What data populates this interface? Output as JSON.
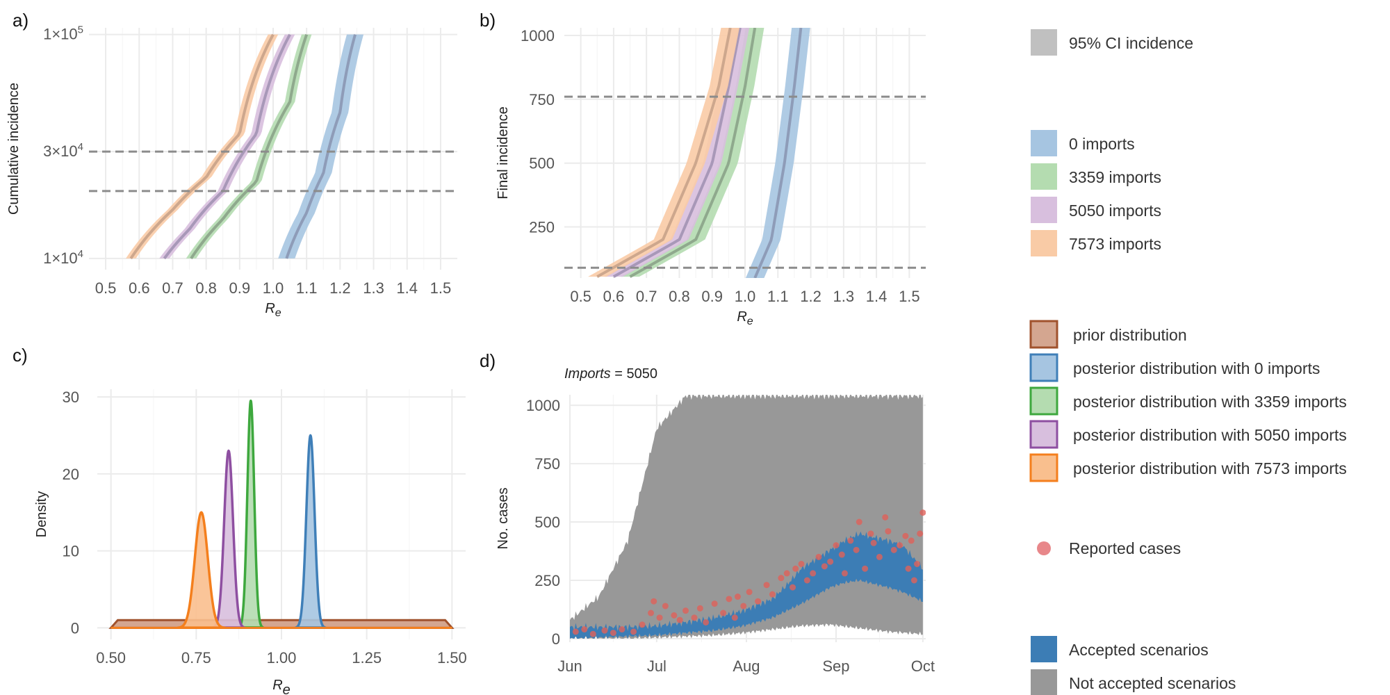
{
  "figure": {
    "panel_labels": [
      "a)",
      "b)",
      "c)",
      "d)"
    ]
  },
  "chart_data": [
    {
      "type": "line",
      "panel": "a)",
      "ylabel": "Cumulative incidence",
      "xlabel": "R",
      "xlabel_sub": "e",
      "xlim": [
        0.45,
        1.55
      ],
      "ylog10_range": [
        3.95,
        5.03
      ],
      "x_ticks": [
        "0.5",
        "0.6",
        "0.7",
        "0.8",
        "0.9",
        "1.0",
        "1.1",
        "1.2",
        "1.3",
        "1.4",
        "1.5"
      ],
      "y_ticks": [
        {
          "value": 10000,
          "mant": "1",
          "exp": "4"
        },
        {
          "value": 30000,
          "mant": "3",
          "exp": "4"
        },
        {
          "value": 100000,
          "mant": "1",
          "exp": "5"
        }
      ],
      "hlines": [
        20000,
        30000
      ],
      "series": [
        {
          "name": "0 imports",
          "color": "#A6C5E1",
          "line": "#8E9CB8",
          "x": [
            1.04,
            1.1,
            1.15,
            1.2,
            1.245
          ],
          "y": [
            10000,
            16000,
            24000,
            45000,
            100000
          ],
          "halfwidth": 0.025
        },
        {
          "name": "3359 imports",
          "color": "#B4DCB0",
          "line": "#8FA98D",
          "x": [
            0.755,
            0.85,
            0.95,
            1.05,
            1.1
          ],
          "y": [
            10000,
            15000,
            22000,
            50000,
            100000
          ],
          "halfwidth": 0.015
        },
        {
          "name": "5050 imports",
          "color": "#D8BFDE",
          "line": "#A898B8",
          "x": [
            0.675,
            0.75,
            0.85,
            0.95,
            1.05
          ],
          "y": [
            10000,
            13500,
            20000,
            36000,
            100000
          ],
          "halfwidth": 0.015
        },
        {
          "name": "7573 imports",
          "color": "#F9CBA6",
          "line": "#CDA78D",
          "x": [
            0.575,
            0.7,
            0.8,
            0.9,
            1.0
          ],
          "y": [
            10000,
            16500,
            23000,
            36000,
            100000
          ],
          "halfwidth": 0.015
        }
      ]
    },
    {
      "type": "line",
      "panel": "b)",
      "ylabel": "Final incidence",
      "xlabel": "R",
      "xlabel_sub": "e",
      "xlim": [
        0.45,
        1.55
      ],
      "ylim": [
        50,
        1030
      ],
      "x_ticks": [
        "0.5",
        "0.6",
        "0.7",
        "0.8",
        "0.9",
        "1.0",
        "1.1",
        "1.2",
        "1.3",
        "1.4",
        "1.5"
      ],
      "y_ticks": [
        "250",
        "500",
        "750",
        "1000"
      ],
      "hlines": [
        90,
        760
      ],
      "series": [
        {
          "name": "0 imports",
          "color": "#A6C5E1",
          "line": "#8E9CB8",
          "x": [
            1.03,
            1.08,
            1.12,
            1.15,
            1.17
          ],
          "y": [
            50,
            200,
            500,
            800,
            1030
          ],
          "halfwidth": 0.028
        },
        {
          "name": "3359 imports",
          "color": "#B4DCB0",
          "line": "#8FA98D",
          "x": [
            0.65,
            0.85,
            0.95,
            1.0,
            1.03
          ],
          "y": [
            55,
            200,
            500,
            800,
            1030
          ],
          "halfwidth": 0.028
        },
        {
          "name": "5050 imports",
          "color": "#D8BFDE",
          "line": "#A898B8",
          "x": [
            0.6,
            0.8,
            0.9,
            0.95,
            0.985
          ],
          "y": [
            55,
            200,
            500,
            800,
            1030
          ],
          "halfwidth": 0.028
        },
        {
          "name": "7573 imports",
          "color": "#F9CBA6",
          "line": "#CDA78D",
          "x": [
            0.55,
            0.75,
            0.85,
            0.92,
            0.955
          ],
          "y": [
            55,
            200,
            500,
            800,
            1030
          ],
          "halfwidth": 0.028
        }
      ]
    },
    {
      "type": "area",
      "panel": "c)",
      "ylabel": "Density",
      "xlabel": "R",
      "xlabel_sub": "e",
      "xlim": [
        0.46,
        1.54
      ],
      "ylim": [
        -1.5,
        31
      ],
      "x_ticks": [
        "0.50",
        "0.75",
        "1.00",
        "1.25",
        "1.50"
      ],
      "y_ticks": [
        "0",
        "10",
        "20",
        "30"
      ],
      "prior": {
        "name": "prior distribution",
        "range": [
          0.5,
          1.5
        ],
        "density": 1.0,
        "fill": "#D4A690",
        "stroke": "#A0522D"
      },
      "posteriors": [
        {
          "name": "posterior distribution with 0 imports",
          "mean": 1.085,
          "sd": 0.012,
          "peak": 25,
          "fill": "#A6C5E1",
          "stroke": "#3F7FB8"
        },
        {
          "name": "posterior distribution with 3359 imports",
          "mean": 0.91,
          "sd": 0.01,
          "peak": 29.5,
          "fill": "#B4DCB0",
          "stroke": "#3EA83E"
        },
        {
          "name": "posterior distribution with 5050 imports",
          "mean": 0.845,
          "sd": 0.013,
          "peak": 23,
          "fill": "#D8BFDE",
          "stroke": "#8E4FA1"
        },
        {
          "name": "posterior distribution with 7573 imports",
          "mean": 0.765,
          "sd": 0.019,
          "peak": 15,
          "fill": "#F9BF8E",
          "stroke": "#F47F1D"
        }
      ]
    },
    {
      "type": "area",
      "panel": "d)",
      "subtitle_italic": "Imports",
      "subtitle_rest": " = 5050",
      "ylabel": "No. cases",
      "xlim": [
        0,
        123
      ],
      "ylim": [
        -15,
        1045
      ],
      "x_ticks": [
        {
          "value": 0,
          "label": "Jun"
        },
        {
          "value": 30,
          "label": "Jul"
        },
        {
          "value": 61,
          "label": "Aug"
        },
        {
          "value": 92,
          "label": "Sep"
        },
        {
          "value": 122,
          "label": "Oct"
        }
      ],
      "y_ticks": [
        "0",
        "250",
        "500",
        "750",
        "1000"
      ],
      "not_accepted_band": {
        "days": [
          0,
          10,
          20,
          30,
          40,
          50,
          60,
          70,
          80,
          90,
          100,
          110,
          122
        ],
        "upper": [
          80,
          180,
          420,
          900,
          1040,
          1040,
          1040,
          1040,
          1040,
          1040,
          1040,
          1040,
          1040
        ],
        "lower": [
          0,
          0,
          0,
          5,
          10,
          15,
          25,
          40,
          55,
          60,
          45,
          30,
          20
        ]
      },
      "accepted_band": {
        "days": [
          0,
          10,
          20,
          30,
          40,
          50,
          60,
          70,
          75,
          80,
          90,
          95,
          100,
          110,
          115,
          122
        ],
        "upper": [
          50,
          50,
          50,
          55,
          70,
          90,
          120,
          170,
          230,
          300,
          380,
          420,
          450,
          420,
          400,
          300
        ],
        "lower": [
          0,
          5,
          10,
          15,
          25,
          35,
          55,
          90,
          120,
          150,
          220,
          240,
          250,
          220,
          200,
          160
        ]
      },
      "reported_cases": {
        "days": [
          2,
          5,
          8,
          12,
          15,
          18,
          22,
          25,
          28,
          29,
          31,
          33,
          36,
          38,
          40,
          43,
          45,
          47,
          50,
          53,
          55,
          57,
          58,
          60,
          62,
          65,
          68,
          70,
          73,
          75,
          77,
          78,
          80,
          82,
          84,
          86,
          88,
          90,
          92,
          94,
          95,
          97,
          99,
          100,
          102,
          104,
          105,
          107,
          109,
          110,
          112,
          114,
          116,
          117,
          118,
          119,
          120,
          121,
          122
        ],
        "values": [
          30,
          40,
          20,
          35,
          25,
          40,
          30,
          60,
          110,
          160,
          90,
          140,
          100,
          80,
          120,
          90,
          130,
          70,
          150,
          110,
          170,
          90,
          180,
          140,
          200,
          160,
          230,
          190,
          260,
          280,
          220,
          300,
          320,
          250,
          280,
          350,
          310,
          330,
          400,
          360,
          280,
          420,
          380,
          500,
          300,
          450,
          410,
          350,
          520,
          460,
          380,
          400,
          440,
          300,
          420,
          250,
          320,
          450,
          540
        ]
      }
    }
  ],
  "legend": {
    "ci": {
      "label": "95% CI incidence",
      "color": "#C0C0C0"
    },
    "imports": [
      {
        "label": "0 imports",
        "color": "#A6C5E1"
      },
      {
        "label": "3359 imports",
        "color": "#B4DCB0"
      },
      {
        "label": "5050 imports",
        "color": "#D8BFDE"
      },
      {
        "label": "7573 imports",
        "color": "#F9CBA6"
      }
    ],
    "distributions": [
      {
        "label": "prior distribution",
        "fill": "#D4A690",
        "stroke": "#A0522D"
      },
      {
        "label": "posterior distribution with 0 imports",
        "fill": "#A6C5E1",
        "stroke": "#3F7FB8"
      },
      {
        "label": "posterior distribution with 3359 imports",
        "fill": "#B4DCB0",
        "stroke": "#3EA83E"
      },
      {
        "label": "posterior distribution with 5050 imports",
        "fill": "#D8BFDE",
        "stroke": "#8E4FA1"
      },
      {
        "label": "posterior distribution with 7573 imports",
        "fill": "#F9BF8E",
        "stroke": "#F47F1D"
      }
    ],
    "reported": {
      "label": "Reported cases",
      "color": "#E8878A"
    },
    "scenarios": [
      {
        "label": "Accepted scenarios",
        "color": "#3C7DB5"
      },
      {
        "label": "Not accepted scenarios",
        "color": "#989898"
      }
    ]
  }
}
